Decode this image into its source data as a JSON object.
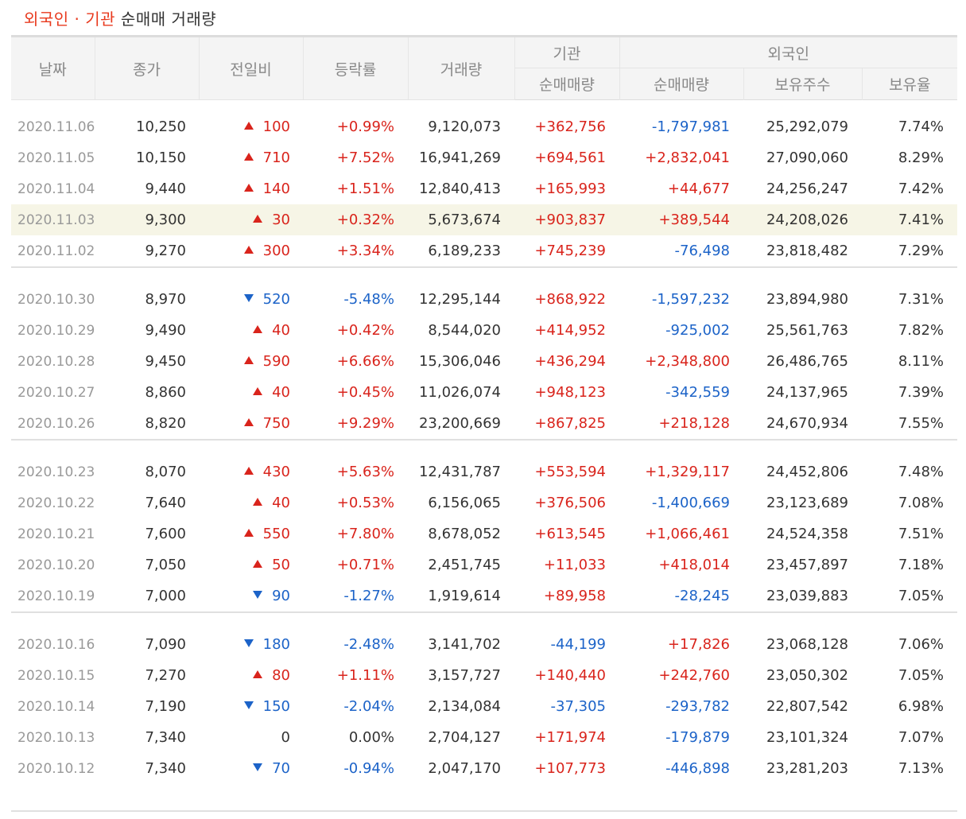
{
  "title": {
    "accent": "외국인 · 기관",
    "rest": " 순매매 거래량"
  },
  "headers": {
    "date": "날짜",
    "close": "종가",
    "change": "전일비",
    "rate": "등락률",
    "volume": "거래량",
    "institution": "기관",
    "foreigner": "외국인",
    "inst_net": "순매매량",
    "frn_net": "순매매량",
    "holding": "보유주수",
    "ratio": "보유율"
  },
  "colors": {
    "up": "#d9241c",
    "down": "#1c63c8",
    "accent": "#e8391d",
    "highlight": "#f6f5e6"
  },
  "groups": [
    [
      {
        "date": "2020.11.06",
        "close": "10,250",
        "dir": "up",
        "change": "100",
        "rate": "+0.99%",
        "volume": "9,120,073",
        "inst": "+362,756",
        "frn": "-1,797,981",
        "hold": "25,292,079",
        "ratio": "7.74%"
      },
      {
        "date": "2020.11.05",
        "close": "10,150",
        "dir": "up",
        "change": "710",
        "rate": "+7.52%",
        "volume": "16,941,269",
        "inst": "+694,561",
        "frn": "+2,832,041",
        "hold": "27,090,060",
        "ratio": "8.29%"
      },
      {
        "date": "2020.11.04",
        "close": "9,440",
        "dir": "up",
        "change": "140",
        "rate": "+1.51%",
        "volume": "12,840,413",
        "inst": "+165,993",
        "frn": "+44,677",
        "hold": "24,256,247",
        "ratio": "7.42%"
      },
      {
        "date": "2020.11.03",
        "close": "9,300",
        "dir": "up",
        "change": "30",
        "rate": "+0.32%",
        "volume": "5,673,674",
        "inst": "+903,837",
        "frn": "+389,544",
        "hold": "24,208,026",
        "ratio": "7.41%",
        "highlight": true
      },
      {
        "date": "2020.11.02",
        "close": "9,270",
        "dir": "up",
        "change": "300",
        "rate": "+3.34%",
        "volume": "6,189,233",
        "inst": "+745,239",
        "frn": "-76,498",
        "hold": "23,818,482",
        "ratio": "7.29%"
      }
    ],
    [
      {
        "date": "2020.10.30",
        "close": "8,970",
        "dir": "down",
        "change": "520",
        "rate": "-5.48%",
        "volume": "12,295,144",
        "inst": "+868,922",
        "frn": "-1,597,232",
        "hold": "23,894,980",
        "ratio": "7.31%"
      },
      {
        "date": "2020.10.29",
        "close": "9,490",
        "dir": "up",
        "change": "40",
        "rate": "+0.42%",
        "volume": "8,544,020",
        "inst": "+414,952",
        "frn": "-925,002",
        "hold": "25,561,763",
        "ratio": "7.82%"
      },
      {
        "date": "2020.10.28",
        "close": "9,450",
        "dir": "up",
        "change": "590",
        "rate": "+6.66%",
        "volume": "15,306,046",
        "inst": "+436,294",
        "frn": "+2,348,800",
        "hold": "26,486,765",
        "ratio": "8.11%"
      },
      {
        "date": "2020.10.27",
        "close": "8,860",
        "dir": "up",
        "change": "40",
        "rate": "+0.45%",
        "volume": "11,026,074",
        "inst": "+948,123",
        "frn": "-342,559",
        "hold": "24,137,965",
        "ratio": "7.39%"
      },
      {
        "date": "2020.10.26",
        "close": "8,820",
        "dir": "up",
        "change": "750",
        "rate": "+9.29%",
        "volume": "23,200,669",
        "inst": "+867,825",
        "frn": "+218,128",
        "hold": "24,670,934",
        "ratio": "7.55%"
      }
    ],
    [
      {
        "date": "2020.10.23",
        "close": "8,070",
        "dir": "up",
        "change": "430",
        "rate": "+5.63%",
        "volume": "12,431,787",
        "inst": "+553,594",
        "frn": "+1,329,117",
        "hold": "24,452,806",
        "ratio": "7.48%"
      },
      {
        "date": "2020.10.22",
        "close": "7,640",
        "dir": "up",
        "change": "40",
        "rate": "+0.53%",
        "volume": "6,156,065",
        "inst": "+376,506",
        "frn": "-1,400,669",
        "hold": "23,123,689",
        "ratio": "7.08%"
      },
      {
        "date": "2020.10.21",
        "close": "7,600",
        "dir": "up",
        "change": "550",
        "rate": "+7.80%",
        "volume": "8,678,052",
        "inst": "+613,545",
        "frn": "+1,066,461",
        "hold": "24,524,358",
        "ratio": "7.51%"
      },
      {
        "date": "2020.10.20",
        "close": "7,050",
        "dir": "up",
        "change": "50",
        "rate": "+0.71%",
        "volume": "2,451,745",
        "inst": "+11,033",
        "frn": "+418,014",
        "hold": "23,457,897",
        "ratio": "7.18%"
      },
      {
        "date": "2020.10.19",
        "close": "7,000",
        "dir": "down",
        "change": "90",
        "rate": "-1.27%",
        "volume": "1,919,614",
        "inst": "+89,958",
        "frn": "-28,245",
        "hold": "23,039,883",
        "ratio": "7.05%"
      }
    ],
    [
      {
        "date": "2020.10.16",
        "close": "7,090",
        "dir": "down",
        "change": "180",
        "rate": "-2.48%",
        "volume": "3,141,702",
        "inst": "-44,199",
        "frn": "+17,826",
        "hold": "23,068,128",
        "ratio": "7.06%"
      },
      {
        "date": "2020.10.15",
        "close": "7,270",
        "dir": "up",
        "change": "80",
        "rate": "+1.11%",
        "volume": "3,157,727",
        "inst": "+140,440",
        "frn": "+242,760",
        "hold": "23,050,302",
        "ratio": "7.05%"
      },
      {
        "date": "2020.10.14",
        "close": "7,190",
        "dir": "down",
        "change": "150",
        "rate": "-2.04%",
        "volume": "2,134,084",
        "inst": "-37,305",
        "frn": "-293,782",
        "hold": "22,807,542",
        "ratio": "6.98%"
      },
      {
        "date": "2020.10.13",
        "close": "7,340",
        "dir": "none",
        "change": "0",
        "rate": "0.00%",
        "volume": "2,704,127",
        "inst": "+171,974",
        "frn": "-179,879",
        "hold": "23,101,324",
        "ratio": "7.07%"
      },
      {
        "date": "2020.10.12",
        "close": "7,340",
        "dir": "down",
        "change": "70",
        "rate": "-0.94%",
        "volume": "2,047,170",
        "inst": "+107,773",
        "frn": "-446,898",
        "hold": "23,281,203",
        "ratio": "7.13%"
      }
    ]
  ]
}
